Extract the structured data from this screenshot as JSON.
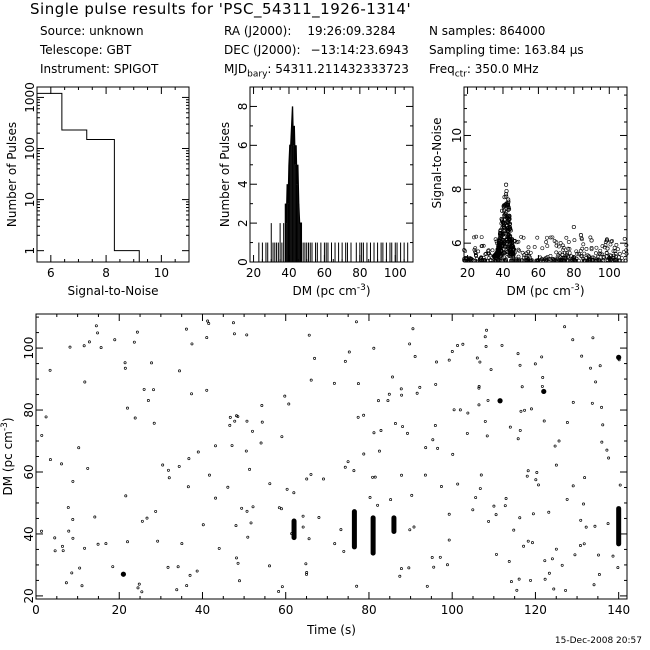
{
  "header": {
    "title": "Single pulse results for 'PSC_54311_1926-1314'",
    "source": "Source: unknown",
    "telescope": "Telescope: GBT",
    "instrument": "Instrument: SPIGOT",
    "ra_label": "RA (J2000):",
    "ra_value": "19:26:09.3284",
    "dec_label": "DEC (J2000):",
    "dec_value": "−13:14:23.6943",
    "mjd_label": "MJD",
    "mjd_sub": "bary",
    "mjd_value": ": 54311.211432333723",
    "nsamples": "N samples: 864000",
    "sampling": "Sampling time: 163.84 μs",
    "freq_label": "Freq",
    "freq_sub": "ctr",
    "freq_value": ": 350.0 MHz"
  },
  "timestamp": "15-Dec-2008 20:57",
  "chart_data": [
    {
      "id": "snr-hist",
      "type": "histogram",
      "xlabel": "Signal-to-Noise",
      "ylabel": "Number of Pulses",
      "xlim": [
        5.5,
        11
      ],
      "ylim_log": [
        0.6,
        1600
      ],
      "yscale": "log",
      "xticks": [
        6,
        8,
        10
      ],
      "yticks": [
        1,
        10,
        100,
        1000
      ],
      "edges": [
        5.5,
        6.4,
        7.3,
        8.3,
        9.2
      ],
      "counts": [
        1200,
        230,
        150,
        1
      ]
    },
    {
      "id": "dm-hist",
      "type": "histogram",
      "xlabel": "DM (pc cm",
      "xlabel_sup": "-3",
      "xlabel_end": ")",
      "ylabel": "Number of Pulses",
      "xlim": [
        18,
        110
      ],
      "ylim": [
        0,
        9
      ],
      "xticks": [
        20,
        40,
        60,
        80,
        100
      ],
      "yticks": [
        0,
        2,
        4,
        6,
        8
      ],
      "peak_dm": 42,
      "peak_count": 8,
      "bins": [
        [
          23,
          1
        ],
        [
          25,
          1
        ],
        [
          27,
          1
        ],
        [
          28,
          1
        ],
        [
          30,
          2
        ],
        [
          31,
          1
        ],
        [
          32,
          1
        ],
        [
          33,
          1
        ],
        [
          34,
          1
        ],
        [
          35,
          2
        ],
        [
          36,
          1
        ],
        [
          37,
          2
        ],
        [
          38,
          3
        ],
        [
          38.5,
          2
        ],
        [
          39,
          4
        ],
        [
          39.5,
          3
        ],
        [
          40,
          5
        ],
        [
          40.5,
          6
        ],
        [
          41,
          6
        ],
        [
          41.5,
          7
        ],
        [
          42,
          8
        ],
        [
          42.5,
          6
        ],
        [
          43,
          7
        ],
        [
          43.5,
          5
        ],
        [
          44,
          6
        ],
        [
          44.5,
          4
        ],
        [
          45,
          5
        ],
        [
          45.5,
          3
        ],
        [
          46,
          2
        ],
        [
          46.5,
          2
        ],
        [
          47,
          2
        ],
        [
          48,
          1
        ],
        [
          49,
          1
        ],
        [
          50,
          1
        ],
        [
          51,
          1
        ],
        [
          52,
          1
        ],
        [
          53,
          1
        ],
        [
          55,
          1
        ],
        [
          56,
          1
        ],
        [
          58,
          1
        ],
        [
          60,
          1
        ],
        [
          61,
          1
        ],
        [
          62,
          1
        ],
        [
          64,
          1
        ],
        [
          66,
          1
        ],
        [
          68,
          1
        ],
        [
          70,
          1
        ],
        [
          72,
          1
        ],
        [
          73,
          1
        ],
        [
          75,
          1
        ],
        [
          78,
          1
        ],
        [
          80,
          1
        ],
        [
          81,
          1
        ],
        [
          82,
          1
        ],
        [
          84,
          1
        ],
        [
          86,
          1
        ],
        [
          88,
          1
        ],
        [
          90,
          1
        ],
        [
          92,
          1
        ],
        [
          93,
          1
        ],
        [
          95,
          1
        ],
        [
          97,
          1
        ],
        [
          98,
          1
        ],
        [
          100,
          1
        ],
        [
          101,
          1
        ],
        [
          103,
          1
        ],
        [
          105,
          1
        ],
        [
          107,
          1
        ]
      ]
    },
    {
      "id": "snr-vs-dm",
      "type": "scatter",
      "xlabel": "DM (pc cm",
      "xlabel_sup": "-3",
      "xlabel_end": ")",
      "ylabel": "Signal-to-Noise",
      "xlim": [
        18,
        110
      ],
      "ylim": [
        5.3,
        11.8
      ],
      "xticks": [
        20,
        40,
        60,
        80,
        100
      ],
      "yticks": [
        6,
        8,
        10
      ],
      "main_cluster": {
        "dm_range": [
          33,
          47
        ],
        "snr_range": [
          5.5,
          8.2
        ]
      },
      "outliers": [
        [
          80,
          6.6
        ],
        [
          84,
          6.3
        ],
        [
          90,
          6.1
        ],
        [
          99,
          5.8
        ]
      ]
    },
    {
      "id": "dm-vs-time",
      "type": "scatter",
      "xlabel": "Time (s)",
      "ylabel": "DM (pc cm",
      "ylabel_sup": "-3",
      "ylabel_end": ")",
      "xlim": [
        0,
        142
      ],
      "ylim": [
        19,
        111
      ],
      "xticks": [
        0,
        20,
        40,
        60,
        80,
        100,
        120,
        140
      ],
      "yticks": [
        20,
        40,
        60,
        80,
        100
      ],
      "pulses": [
        {
          "t": 62,
          "dm_min": 38,
          "dm_max": 45
        },
        {
          "t": 76.5,
          "dm_min": 35,
          "dm_max": 48
        },
        {
          "t": 81,
          "dm_min": 33,
          "dm_max": 46
        },
        {
          "t": 86,
          "dm_min": 40,
          "dm_max": 46
        },
        {
          "t": 140,
          "dm_min": 36,
          "dm_max": 49
        }
      ],
      "big_points": [
        [
          111.5,
          83
        ],
        [
          21,
          27
        ],
        [
          122,
          86
        ],
        [
          140,
          97
        ]
      ]
    }
  ]
}
